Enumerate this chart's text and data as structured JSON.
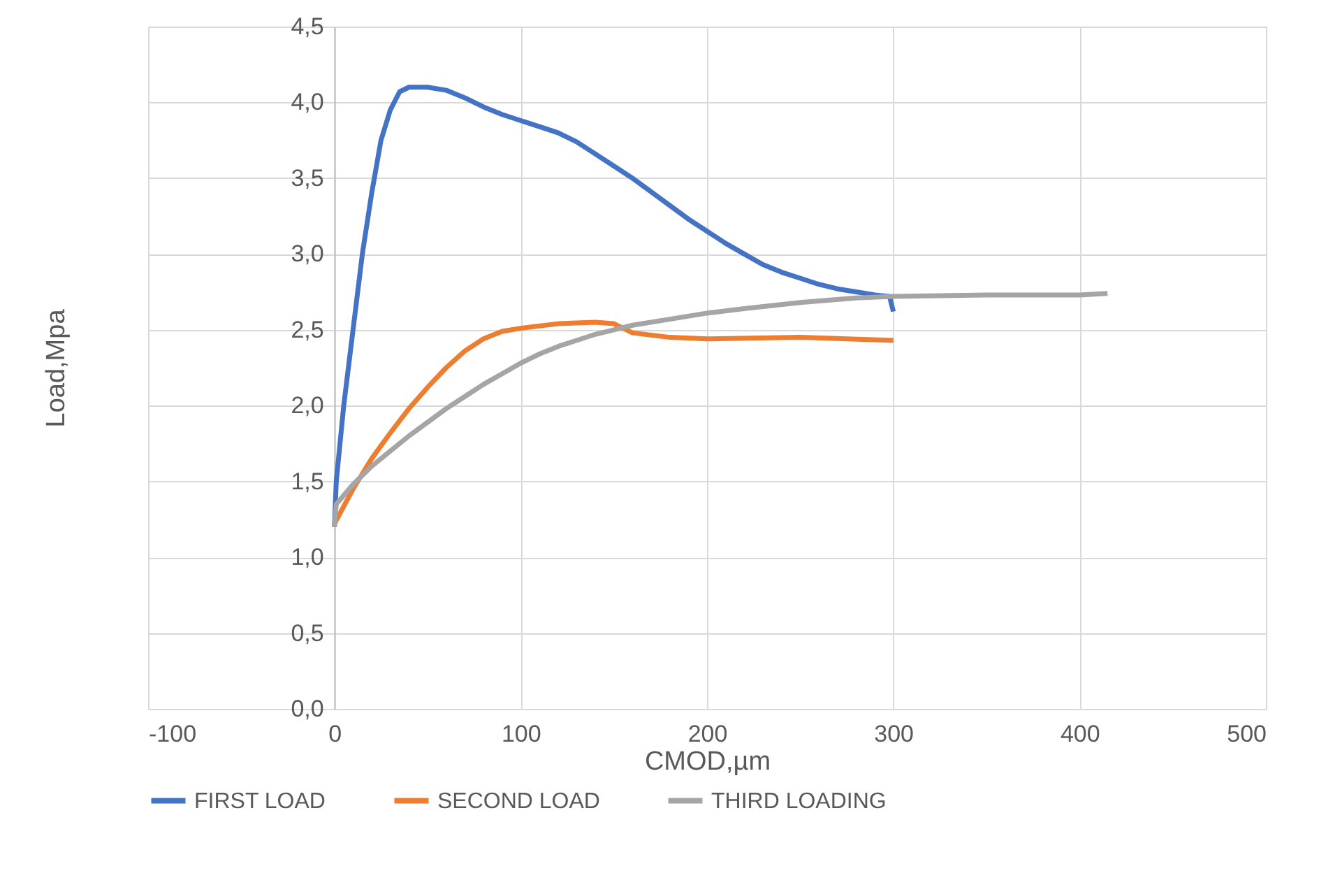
{
  "chart_data": {
    "type": "line",
    "xlabel": "CMOD,µm",
    "ylabel": "Load,Mpa",
    "xlim": [
      -100,
      500
    ],
    "xticks": [
      -100,
      0,
      100,
      200,
      300,
      400,
      500
    ],
    "ylim": [
      0,
      4.5
    ],
    "yticks": [
      {
        "value": 0,
        "label": "0,0"
      },
      {
        "value": 0.5,
        "label": "0,5"
      },
      {
        "value": 1,
        "label": "1,0"
      },
      {
        "value": 1.5,
        "label": "1,5"
      },
      {
        "value": 2,
        "label": "2,0"
      },
      {
        "value": 2.5,
        "label": "2,5"
      },
      {
        "value": 3,
        "label": "3,0"
      },
      {
        "value": 3.5,
        "label": "3,5"
      },
      {
        "value": 4,
        "label": "4,0"
      },
      {
        "value": 4.5,
        "label": "4,5"
      }
    ],
    "grid": true,
    "legend": "bottom",
    "marker": "none",
    "line_style": "solid",
    "series": [
      {
        "name": "FIRST LOAD",
        "color": "#4472c4",
        "x": [
          0,
          1,
          5,
          10,
          15,
          20,
          25,
          30,
          35,
          40,
          50,
          60,
          70,
          80,
          90,
          100,
          110,
          120,
          130,
          140,
          150,
          160,
          170,
          180,
          190,
          200,
          210,
          220,
          230,
          240,
          250,
          260,
          270,
          280,
          290,
          298,
          300
        ],
        "values": [
          1.2,
          1.5,
          2.0,
          2.5,
          3.0,
          3.4,
          3.75,
          3.95,
          4.07,
          4.1,
          4.1,
          4.08,
          4.03,
          3.97,
          3.92,
          3.88,
          3.84,
          3.8,
          3.74,
          3.66,
          3.58,
          3.5,
          3.41,
          3.32,
          3.23,
          3.15,
          3.07,
          3.0,
          2.93,
          2.88,
          2.84,
          2.8,
          2.77,
          2.75,
          2.73,
          2.72,
          2.62
        ]
      },
      {
        "name": "SECOND LOAD",
        "color": "#ed7d31",
        "x": [
          0,
          10,
          20,
          30,
          40,
          50,
          60,
          70,
          80,
          90,
          100,
          120,
          140,
          150,
          160,
          180,
          200,
          250,
          300
        ],
        "values": [
          1.22,
          1.45,
          1.65,
          1.82,
          1.98,
          2.12,
          2.25,
          2.36,
          2.44,
          2.49,
          2.51,
          2.54,
          2.55,
          2.54,
          2.48,
          2.45,
          2.44,
          2.45,
          2.43
        ]
      },
      {
        "name": "THIRD LOADING",
        "color": "#a5a5a5",
        "x": [
          0,
          1,
          10,
          20,
          30,
          40,
          50,
          60,
          70,
          80,
          90,
          100,
          110,
          120,
          130,
          140,
          150,
          160,
          180,
          200,
          220,
          250,
          280,
          300,
          350,
          400,
          415
        ],
        "values": [
          1.2,
          1.35,
          1.48,
          1.6,
          1.7,
          1.8,
          1.89,
          1.98,
          2.06,
          2.14,
          2.21,
          2.28,
          2.34,
          2.39,
          2.43,
          2.47,
          2.5,
          2.53,
          2.57,
          2.61,
          2.64,
          2.68,
          2.71,
          2.72,
          2.73,
          2.73,
          2.74
        ]
      }
    ]
  }
}
